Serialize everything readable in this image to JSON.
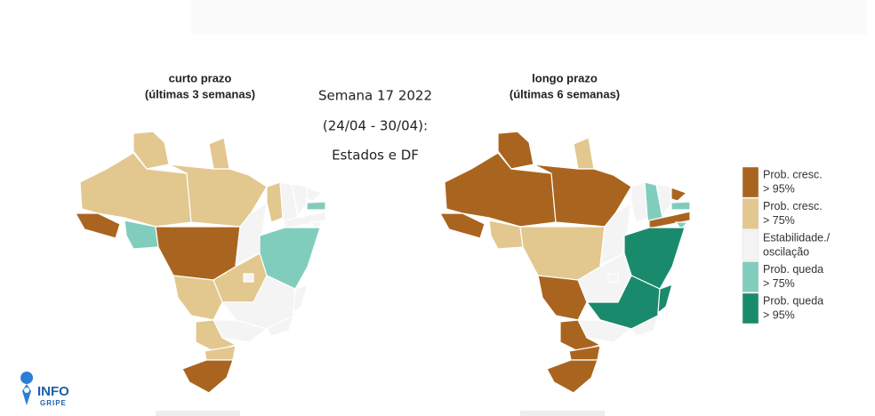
{
  "maps": [
    {
      "title": "curto prazo",
      "subtitle": "(últimas 3 semanas)"
    },
    {
      "title": "longo prazo",
      "subtitle": "(últimas 6 semanas)"
    }
  ],
  "center": {
    "lines": [
      "Semana 17 2022",
      "(24/04 - 30/04):",
      "Estados e DF"
    ]
  },
  "legend": [
    {
      "lines": [
        "Prob. cresc.",
        "> 95%"
      ],
      "color": "#a9651f"
    },
    {
      "lines": [
        "Prob. cresc.",
        "> 75%"
      ],
      "color": "#e2c78f"
    },
    {
      "lines": [
        "Estabilidade./",
        "oscilação"
      ],
      "color": "#f4f4f4"
    },
    {
      "lines": [
        "Prob. queda",
        "> 75%"
      ],
      "color": "#80cdbd"
    },
    {
      "lines": [
        "Prob. queda",
        "> 95%"
      ],
      "color": "#1a8a6c"
    }
  ],
  "logo": {
    "top": "INFO",
    "bottom": "GRIPE"
  }
}
